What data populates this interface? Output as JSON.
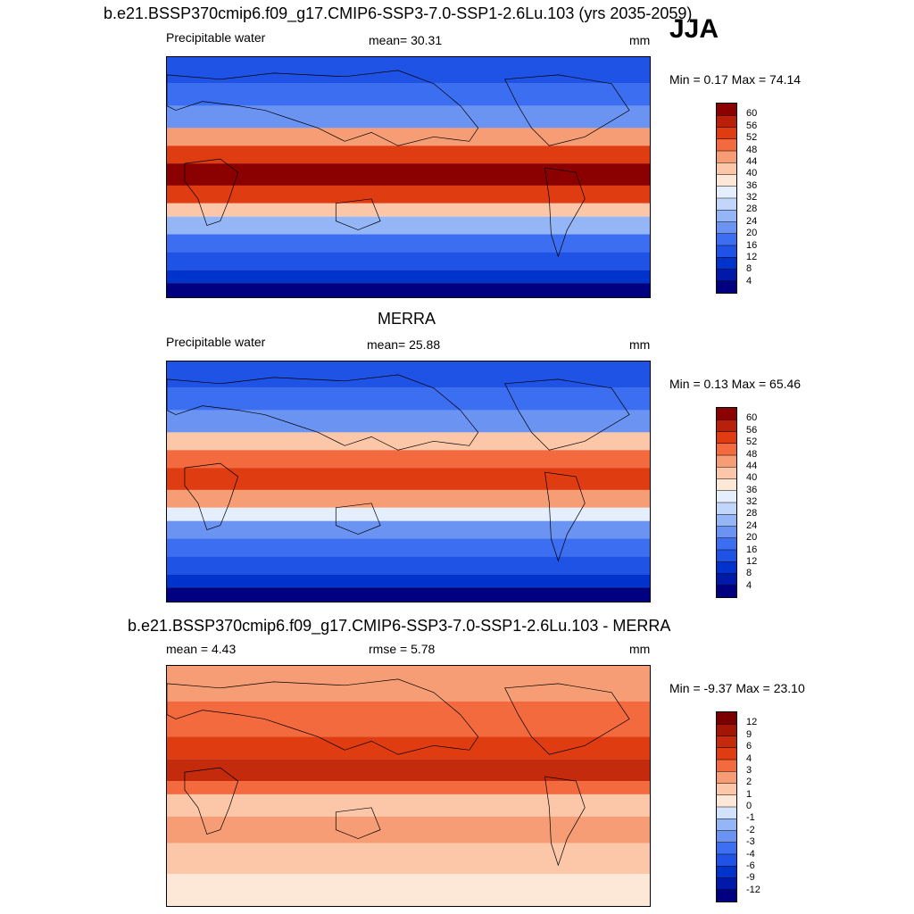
{
  "season": "JJA",
  "panels": [
    {
      "id": "model",
      "title": "b.e21.BSSP370cmip6.f09_g17.CMIP6-SSP3-7.0-SSP1-2.6Lu.103 (yrs 2035-2059)",
      "left_label": "Precipitable water",
      "center_label": "mean=  30.31",
      "units": "mm",
      "minmax": "Min =   0.17 Max =  74.14"
    },
    {
      "id": "obs",
      "title": "MERRA",
      "left_label": "Precipitable water",
      "center_label": "mean=  25.88",
      "units": "mm",
      "minmax": "Min =   0.13 Max =  65.46"
    },
    {
      "id": "diff",
      "title": "b.e21.BSSP370cmip6.f09_g17.CMIP6-SSP3-7.0-SSP1-2.6Lu.103 - MERRA",
      "left_label": "mean =   4.43",
      "center_label": "rmse =   5.78",
      "units": "mm",
      "minmax": "Min =  -9.37 Max =  23.10"
    }
  ],
  "chart_data": [
    {
      "type": "heatmap",
      "title": "b.e21.BSSP370cmip6.f09_g17.CMIP6-SSP3-7.0-SSP1-2.6Lu.103 (yrs 2035-2059)",
      "variable": "Precipitable water",
      "units": "mm",
      "mean": 30.31,
      "min": 0.17,
      "max": 74.14,
      "colorbar_levels": [
        4,
        8,
        12,
        16,
        20,
        24,
        28,
        32,
        36,
        40,
        44,
        48,
        52,
        56,
        60
      ],
      "colorbar_colors": [
        "#000080",
        "#0019a8",
        "#0033cc",
        "#1f53e5",
        "#3b6ef0",
        "#6a93f2",
        "#95b6f6",
        "#c2d6fb",
        "#e4eefd",
        "#fde7d6",
        "#fbc7a8",
        "#f79d75",
        "#f26a3d",
        "#e03c12",
        "#b8200a",
        "#8b0000"
      ]
    },
    {
      "type": "heatmap",
      "title": "MERRA",
      "variable": "Precipitable water",
      "units": "mm",
      "mean": 25.88,
      "min": 0.13,
      "max": 65.46,
      "colorbar_levels": [
        4,
        8,
        12,
        16,
        20,
        24,
        28,
        32,
        36,
        40,
        44,
        48,
        52,
        56,
        60
      ],
      "colorbar_colors": [
        "#000080",
        "#0019a8",
        "#0033cc",
        "#1f53e5",
        "#3b6ef0",
        "#6a93f2",
        "#95b6f6",
        "#c2d6fb",
        "#e4eefd",
        "#fde7d6",
        "#fbc7a8",
        "#f79d75",
        "#f26a3d",
        "#e03c12",
        "#b8200a",
        "#8b0000"
      ]
    },
    {
      "type": "heatmap",
      "title": "b.e21.BSSP370cmip6.f09_g17.CMIP6-SSP3-7.0-SSP1-2.6Lu.103 - MERRA",
      "units": "mm",
      "mean": 4.43,
      "rmse": 5.78,
      "min": -9.37,
      "max": 23.1,
      "colorbar_levels": [
        -12,
        -9,
        -6,
        -4,
        -3,
        -2,
        -1,
        0,
        1,
        2,
        3,
        4,
        6,
        9,
        12
      ],
      "colorbar_colors": [
        "#000080",
        "#0019a8",
        "#0033cc",
        "#1f53e5",
        "#3b6ef0",
        "#6a93f2",
        "#95b6f6",
        "#d2e2fb",
        "#fde7d6",
        "#fbc7a8",
        "#f79d75",
        "#f26a3d",
        "#e03c12",
        "#c42a0c",
        "#a31505",
        "#7a0000"
      ]
    }
  ]
}
